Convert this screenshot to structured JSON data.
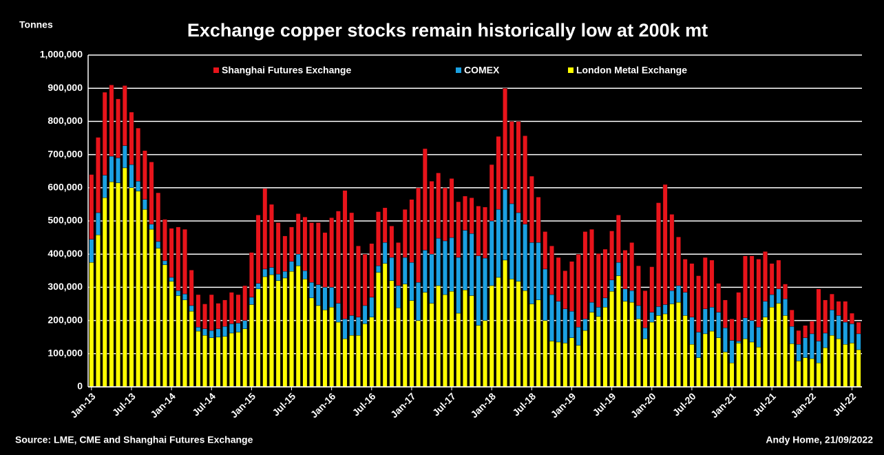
{
  "chart_data": {
    "type": "stacked_bar",
    "title": "Exchange copper stocks remain historically low at 200k mt",
    "y_label": "Tonnes",
    "source": "Source: LME, CME and Shanghai Futures Exchange",
    "credit": "Andy Home, 21/09/2022",
    "categories": [
      "Jan-13",
      null,
      null,
      null,
      null,
      null,
      "Jul-13",
      null,
      null,
      null,
      null,
      null,
      "Jan-14",
      null,
      null,
      null,
      null,
      null,
      "Jul-14",
      null,
      null,
      null,
      null,
      null,
      "Jan-15",
      null,
      null,
      null,
      null,
      null,
      "Jul-15",
      null,
      null,
      null,
      null,
      null,
      "Jan-16",
      null,
      null,
      null,
      null,
      null,
      "Jul-16",
      null,
      null,
      null,
      null,
      null,
      "Jan-17",
      null,
      null,
      null,
      null,
      null,
      "Jul-17",
      null,
      null,
      null,
      null,
      null,
      "Jan-18",
      null,
      null,
      null,
      null,
      null,
      "Jul-18",
      null,
      null,
      null,
      null,
      null,
      "Jan-19",
      null,
      null,
      null,
      null,
      null,
      "Jul-19",
      null,
      null,
      null,
      null,
      null,
      "Jan-20",
      null,
      null,
      null,
      null,
      null,
      "Jul-20",
      null,
      null,
      null,
      null,
      null,
      "Jan-21",
      null,
      null,
      null,
      null,
      null,
      "Jul-21",
      null,
      null,
      null,
      null,
      null,
      "Jan-22",
      null,
      null,
      null,
      null,
      null,
      "Jul-22",
      null
    ],
    "series": [
      {
        "name": "London Metal Exchange",
        "color": "#ffff00",
        "values": [
          375000,
          458000,
          570000,
          618000,
          615000,
          660000,
          600000,
          590000,
          535000,
          475000,
          418000,
          368000,
          318000,
          275000,
          262000,
          228000,
          168000,
          155000,
          148000,
          150000,
          152000,
          162000,
          165000,
          175000,
          248000,
          295000,
          332000,
          338000,
          320000,
          328000,
          348000,
          365000,
          325000,
          268000,
          245000,
          232000,
          240000,
          195000,
          145000,
          155000,
          155000,
          190000,
          210000,
          345000,
          372000,
          320000,
          238000,
          310000,
          260000,
          200000,
          285000,
          252000,
          305000,
          278000,
          288000,
          222000,
          292000,
          275000,
          185000,
          200000,
          305000,
          330000,
          382000,
          325000,
          318000,
          290000,
          250000,
          262000,
          200000,
          138000,
          135000,
          132000,
          148000,
          125000,
          170000,
          225000,
          212000,
          240000,
          288000,
          335000,
          258000,
          255000,
          205000,
          145000,
          195000,
          215000,
          220000,
          250000,
          255000,
          215000,
          128000,
          88000,
          160000,
          168000,
          148000,
          105000,
          72000,
          132000,
          145000,
          135000,
          120000,
          210000,
          240000,
          252000,
          215000,
          130000,
          78000,
          88000,
          85000,
          72000,
          118000,
          155000,
          145000,
          128000,
          132000,
          112000
        ]
      },
      {
        "name": "COMEX",
        "color": "#1ba1e2",
        "values": [
          70000,
          67000,
          68000,
          77000,
          75000,
          67000,
          70000,
          30000,
          30000,
          15000,
          20000,
          12000,
          12000,
          15000,
          18000,
          17000,
          12000,
          20000,
          22000,
          25000,
          30000,
          28000,
          27000,
          25000,
          22000,
          17000,
          23000,
          22000,
          20000,
          20000,
          30000,
          35000,
          25000,
          47000,
          63000,
          68000,
          60000,
          57000,
          60000,
          60000,
          55000,
          55000,
          60000,
          20000,
          63000,
          70000,
          67000,
          80000,
          115000,
          115000,
          127000,
          148000,
          143000,
          162000,
          162000,
          168000,
          180000,
          187000,
          210000,
          188000,
          195000,
          205000,
          213000,
          227000,
          207000,
          200000,
          185000,
          173000,
          155000,
          140000,
          123000,
          103000,
          80000,
          55000,
          35000,
          30000,
          28000,
          28000,
          34000,
          40000,
          37000,
          35000,
          40000,
          33000,
          30000,
          27000,
          28000,
          40000,
          50000,
          70000,
          82000,
          77000,
          75000,
          72000,
          77000,
          73000,
          68000,
          6000,
          63000,
          65000,
          60000,
          48000,
          38000,
          43000,
          50000,
          52000,
          50000,
          60000,
          75000,
          66000,
          44000,
          77000,
          70000,
          67000,
          58000,
          48000
        ]
      },
      {
        "name": "Shanghai Futures Exchange",
        "color": "#e8141b",
        "values": [
          195000,
          227000,
          250000,
          215000,
          178000,
          181000,
          158000,
          160000,
          147000,
          188000,
          147000,
          125000,
          148000,
          192000,
          195000,
          107000,
          98000,
          75000,
          108000,
          77000,
          80000,
          95000,
          86000,
          105000,
          135000,
          206000,
          243000,
          190000,
          155000,
          107000,
          104000,
          122000,
          162000,
          180000,
          187000,
          165000,
          210000,
          278000,
          387000,
          310000,
          215000,
          155000,
          162000,
          163000,
          105000,
          95000,
          130000,
          145000,
          190000,
          285000,
          306000,
          220000,
          197000,
          160000,
          178000,
          168000,
          103000,
          108000,
          150000,
          154000,
          170000,
          220000,
          305000,
          248000,
          275000,
          267000,
          200000,
          137000,
          113000,
          147000,
          132000,
          115000,
          150000,
          220000,
          263000,
          220000,
          162000,
          147000,
          148000,
          143000,
          117000,
          145000,
          120000,
          112000,
          137000,
          313000,
          362000,
          230000,
          147000,
          100000,
          162000,
          170000,
          155000,
          142000,
          87000,
          84000,
          65000,
          147000,
          187000,
          195000,
          205000,
          150000,
          94000,
          87000,
          45000,
          50000,
          42000,
          37000,
          38000,
          157000,
          100000,
          48000,
          43000,
          63000,
          32000,
          35000
        ]
      }
    ],
    "ylim": [
      0,
      1000000
    ],
    "yticks": [
      0,
      {
        "value": 100000,
        "label": "100,000"
      },
      {
        "value": 200000,
        "label": "200,000"
      },
      {
        "value": 300000,
        "label": "300,000"
      },
      {
        "value": 400000,
        "label": "400,000"
      },
      {
        "value": 500000,
        "label": "500,000"
      },
      {
        "value": 600000,
        "label": "600,000"
      },
      {
        "value": 700000,
        "label": "700,000"
      },
      {
        "value": 800000,
        "label": "800,000"
      },
      {
        "value": 900000,
        "label": "900,000"
      },
      {
        "value": 1000000,
        "label": "1,000,000"
      }
    ],
    "grid": true,
    "legend": "top"
  }
}
